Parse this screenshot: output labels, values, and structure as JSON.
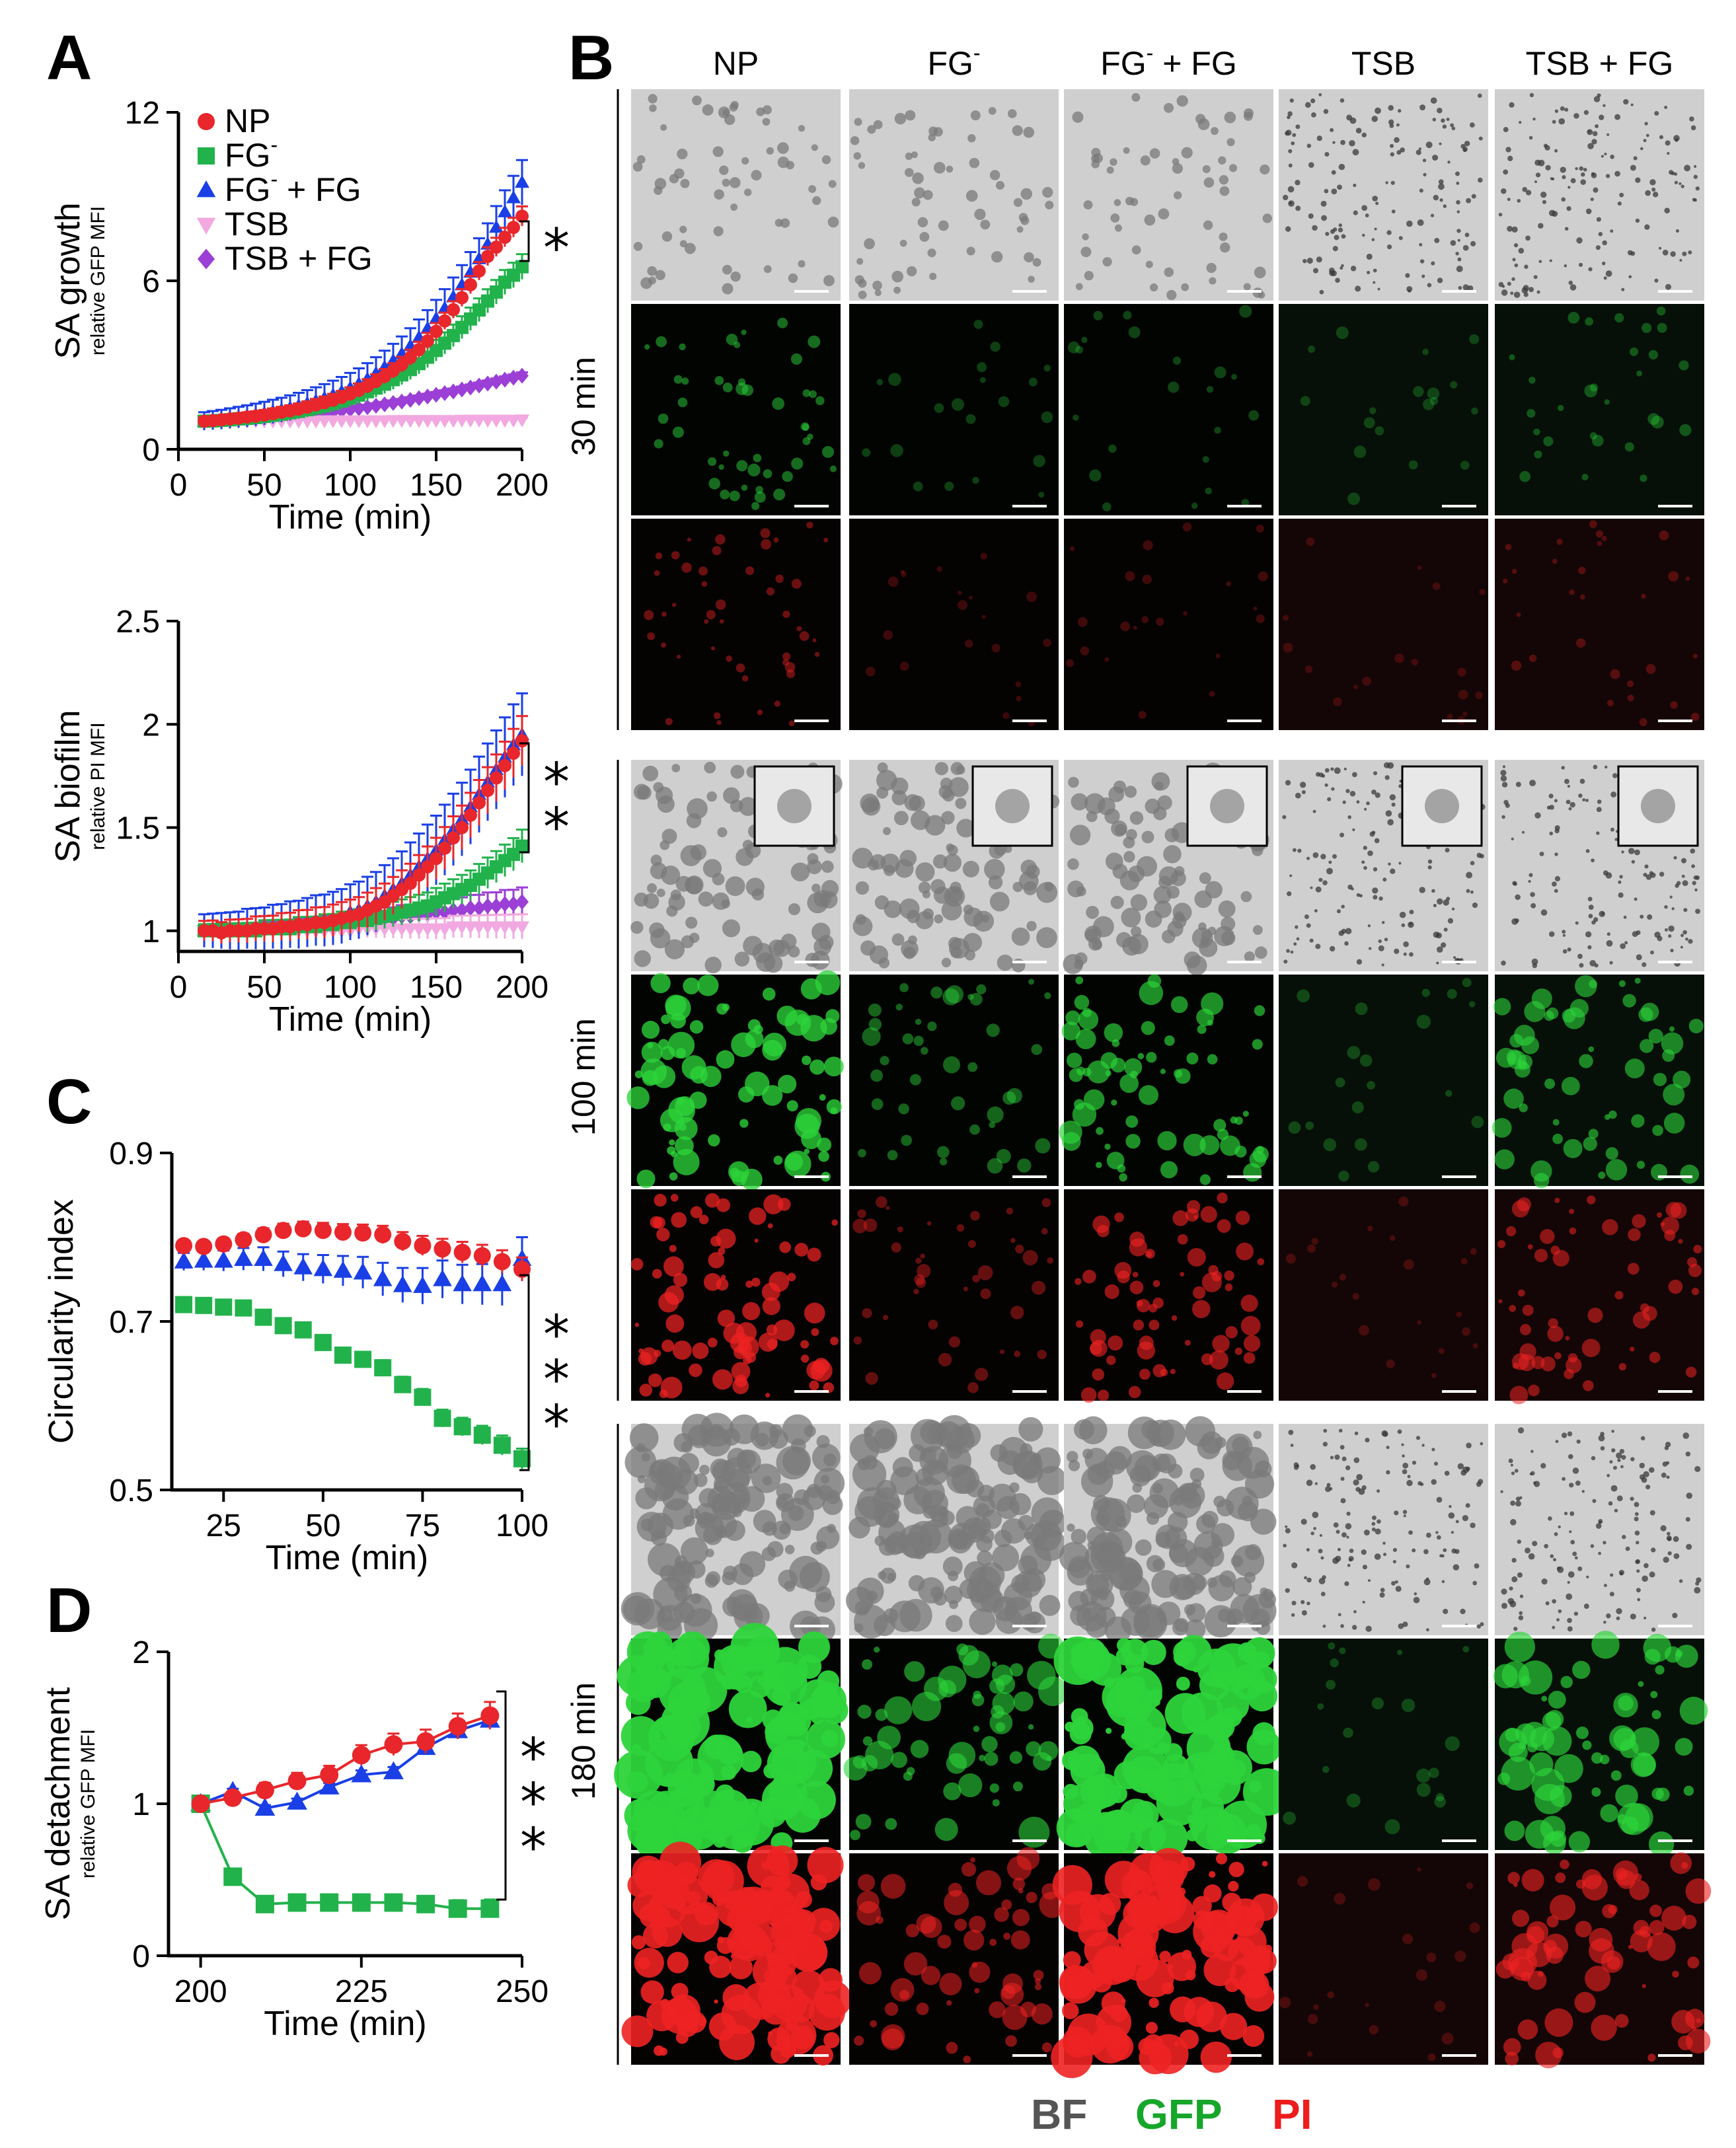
{
  "figure": {
    "panel_labels": {
      "a": "A",
      "b": "B",
      "c": "C",
      "d": "D"
    },
    "colors": {
      "NP": "#e8262b",
      "FG-": "#22b24c",
      "FG- + FG": "#1a3fe6",
      "TSB": "#f2a8e0",
      "TSB + FG": "#9b3fd6"
    },
    "legend": [
      "NP",
      "FG",
      "FG + FG",
      "TSB",
      "TSB + FG"
    ],
    "legend_sup": [
      "",
      "-",
      "-",
      "",
      ""
    ]
  },
  "chart_data": [
    {
      "id": "A-top",
      "type": "line",
      "xlabel": "Time (min)",
      "ylabel": "SA growth",
      "ylabel_sub": "relative GFP MFI",
      "xlim": [
        0,
        200
      ],
      "ylim": [
        0,
        12
      ],
      "xticks": [
        "0",
        "50",
        "100",
        "150",
        "200"
      ],
      "yticks": [
        "0",
        "6",
        "12"
      ],
      "significance": "*",
      "x": [
        15,
        20,
        25,
        30,
        35,
        40,
        45,
        50,
        55,
        60,
        65,
        70,
        75,
        80,
        85,
        90,
        95,
        100,
        105,
        110,
        115,
        120,
        125,
        130,
        135,
        140,
        145,
        150,
        155,
        160,
        165,
        170,
        175,
        180,
        185,
        190,
        195,
        200
      ],
      "series": [
        {
          "name": "NP",
          "marker": "circle",
          "values": [
            1.0,
            1.02,
            1.05,
            1.08,
            1.11,
            1.15,
            1.18,
            1.22,
            1.27,
            1.32,
            1.37,
            1.43,
            1.5,
            1.58,
            1.66,
            1.75,
            1.85,
            1.97,
            2.1,
            2.25,
            2.42,
            2.6,
            2.8,
            3.02,
            3.27,
            3.55,
            3.86,
            4.2,
            4.57,
            4.97,
            5.4,
            5.86,
            6.35,
            6.87,
            7.2,
            7.55,
            7.9,
            8.3
          ]
        },
        {
          "name": "FG-",
          "marker": "square",
          "values": [
            1.0,
            1.01,
            1.03,
            1.05,
            1.08,
            1.1,
            1.13,
            1.17,
            1.21,
            1.25,
            1.3,
            1.35,
            1.41,
            1.48,
            1.55,
            1.63,
            1.72,
            1.82,
            1.93,
            2.05,
            2.18,
            2.32,
            2.48,
            2.65,
            2.84,
            3.05,
            3.28,
            3.52,
            3.78,
            4.05,
            4.34,
            4.64,
            4.96,
            5.28,
            5.6,
            5.95,
            6.2,
            6.5
          ]
        },
        {
          "name": "FG- + FG",
          "marker": "triangle",
          "values": [
            1.0,
            1.03,
            1.06,
            1.1,
            1.14,
            1.18,
            1.23,
            1.28,
            1.34,
            1.4,
            1.47,
            1.55,
            1.63,
            1.72,
            1.82,
            1.93,
            2.05,
            2.18,
            2.33,
            2.5,
            2.7,
            2.92,
            3.15,
            3.4,
            3.68,
            3.98,
            4.3,
            4.65,
            5.02,
            5.42,
            5.85,
            6.3,
            6.78,
            7.3,
            7.9,
            8.45,
            8.95,
            9.5
          ]
        },
        {
          "name": "TSB",
          "marker": "triangle-down",
          "values": [
            1.0,
            1.0,
            1.0,
            1.0,
            1.0,
            1.0,
            1.01,
            1.01,
            1.01,
            1.01,
            1.01,
            1.01,
            1.01,
            1.01,
            1.02,
            1.02,
            1.02,
            1.02,
            1.02,
            1.02,
            1.02,
            1.02,
            1.03,
            1.03,
            1.03,
            1.03,
            1.03,
            1.03,
            1.03,
            1.03,
            1.04,
            1.04,
            1.04,
            1.04,
            1.04,
            1.04,
            1.04,
            1.05
          ]
        },
        {
          "name": "TSB + FG",
          "marker": "diamond",
          "values": [
            1.0,
            1.01,
            1.02,
            1.03,
            1.05,
            1.07,
            1.09,
            1.11,
            1.13,
            1.15,
            1.18,
            1.21,
            1.24,
            1.27,
            1.3,
            1.34,
            1.38,
            1.42,
            1.46,
            1.5,
            1.55,
            1.6,
            1.65,
            1.7,
            1.76,
            1.82,
            1.88,
            1.94,
            2.0,
            2.06,
            2.13,
            2.2,
            2.27,
            2.34,
            2.41,
            2.48,
            2.55,
            2.62
          ]
        }
      ],
      "errors": {
        "NP": 0.35,
        "FG-": 0.45,
        "FG- + FG": 0.8,
        "TSB": 0.08,
        "TSB + FG": 0.12
      }
    },
    {
      "id": "A-bottom",
      "type": "line",
      "xlabel": "Time (min)",
      "ylabel": "SA biofilm",
      "ylabel_sub": "relative PI MFI",
      "xlim": [
        0,
        200
      ],
      "ylim": [
        0.9,
        2.5
      ],
      "xticks": [
        "0",
        "50",
        "100",
        "150",
        "200"
      ],
      "yticks": [
        "1",
        "1.5",
        "2",
        "2.5"
      ],
      "significance": "**",
      "x": [
        15,
        20,
        25,
        30,
        35,
        40,
        45,
        50,
        55,
        60,
        65,
        70,
        75,
        80,
        85,
        90,
        95,
        100,
        105,
        110,
        115,
        120,
        125,
        130,
        135,
        140,
        145,
        150,
        155,
        160,
        165,
        170,
        175,
        180,
        185,
        190,
        195,
        200
      ],
      "series": [
        {
          "name": "NP",
          "marker": "circle",
          "values": [
            1.0,
            1.0,
            0.99,
            1.0,
            1.0,
            1.0,
            1.01,
            1.01,
            1.01,
            1.02,
            1.02,
            1.03,
            1.03,
            1.04,
            1.04,
            1.05,
            1.06,
            1.07,
            1.08,
            1.1,
            1.12,
            1.14,
            1.17,
            1.2,
            1.23,
            1.27,
            1.31,
            1.35,
            1.4,
            1.45,
            1.5,
            1.56,
            1.62,
            1.68,
            1.74,
            1.8,
            1.86,
            1.92
          ]
        },
        {
          "name": "FG-",
          "marker": "square",
          "values": [
            1.0,
            1.0,
            1.0,
            1.0,
            1.0,
            1.0,
            1.0,
            1.01,
            1.01,
            1.01,
            1.01,
            1.02,
            1.02,
            1.02,
            1.03,
            1.03,
            1.04,
            1.04,
            1.05,
            1.05,
            1.06,
            1.07,
            1.08,
            1.09,
            1.1,
            1.11,
            1.12,
            1.14,
            1.16,
            1.18,
            1.2,
            1.22,
            1.25,
            1.28,
            1.31,
            1.34,
            1.37,
            1.41
          ]
        },
        {
          "name": "FG- + FG",
          "marker": "triangle",
          "values": [
            1.0,
            1.0,
            1.0,
            1.0,
            1.0,
            1.01,
            1.01,
            1.01,
            1.02,
            1.02,
            1.03,
            1.03,
            1.04,
            1.05,
            1.05,
            1.06,
            1.07,
            1.09,
            1.1,
            1.12,
            1.14,
            1.17,
            1.2,
            1.23,
            1.27,
            1.31,
            1.35,
            1.39,
            1.44,
            1.49,
            1.54,
            1.6,
            1.66,
            1.72,
            1.78,
            1.84,
            1.9,
            1.95
          ]
        },
        {
          "name": "TSB",
          "marker": "triangle-down",
          "values": [
            1.0,
            1.0,
            1.0,
            1.0,
            1.0,
            1.0,
            1.0,
            1.0,
            1.0,
            1.0,
            1.0,
            1.0,
            1.0,
            1.0,
            1.0,
            1.0,
            1.0,
            1.0,
            1.01,
            1.01,
            1.01,
            1.01,
            1.01,
            1.01,
            1.01,
            1.01,
            1.01,
            1.01,
            1.01,
            1.02,
            1.02,
            1.02,
            1.02,
            1.02,
            1.02,
            1.02,
            1.02,
            1.02
          ]
        },
        {
          "name": "TSB + FG",
          "marker": "diamond",
          "values": [
            1.0,
            1.0,
            1.0,
            1.0,
            1.0,
            1.0,
            1.0,
            1.01,
            1.01,
            1.01,
            1.01,
            1.02,
            1.02,
            1.02,
            1.03,
            1.03,
            1.03,
            1.04,
            1.04,
            1.05,
            1.05,
            1.06,
            1.06,
            1.07,
            1.07,
            1.08,
            1.08,
            1.09,
            1.09,
            1.1,
            1.1,
            1.11,
            1.11,
            1.12,
            1.12,
            1.13,
            1.13,
            1.14
          ]
        }
      ],
      "errors": {
        "NP": 0.12,
        "FG-": 0.08,
        "FG- + FG": 0.2,
        "TSB": 0.06,
        "TSB + FG": 0.07
      }
    },
    {
      "id": "C",
      "type": "line",
      "xlabel": "Time (min)",
      "ylabel": "Circularity index",
      "ylabel_sub": "",
      "xlim": [
        12,
        100
      ],
      "ylim": [
        0.5,
        0.9
      ],
      "xticks": [
        "25",
        "50",
        "75",
        "100"
      ],
      "xtick_values": [
        25,
        50,
        75,
        100
      ],
      "yticks": [
        "0.5",
        "0.7",
        "0.9"
      ],
      "significance": "***",
      "x": [
        15,
        20,
        25,
        30,
        35,
        40,
        45,
        50,
        55,
        60,
        65,
        70,
        75,
        80,
        85,
        90,
        95,
        100
      ],
      "series": [
        {
          "name": "NP",
          "marker": "circle",
          "values": [
            0.79,
            0.789,
            0.792,
            0.797,
            0.803,
            0.808,
            0.81,
            0.808,
            0.806,
            0.805,
            0.803,
            0.795,
            0.79,
            0.786,
            0.782,
            0.778,
            0.771,
            0.762
          ]
        },
        {
          "name": "FG-",
          "marker": "square",
          "values": [
            0.72,
            0.719,
            0.717,
            0.716,
            0.705,
            0.695,
            0.69,
            0.675,
            0.66,
            0.655,
            0.645,
            0.625,
            0.61,
            0.585,
            0.575,
            0.565,
            0.553,
            0.537
          ]
        },
        {
          "name": "FG- + FG",
          "marker": "triangle",
          "values": [
            0.771,
            0.772,
            0.772,
            0.774,
            0.774,
            0.768,
            0.764,
            0.762,
            0.76,
            0.758,
            0.75,
            0.743,
            0.742,
            0.75,
            0.744,
            0.744,
            0.744,
            0.774
          ]
        }
      ],
      "errors": {
        "NP": 0.014,
        "FG-": 0.012,
        "FG- + FG": 0.026
      }
    },
    {
      "id": "D",
      "type": "line",
      "xlabel": "Time (min)",
      "ylabel": "SA detachment",
      "ylabel_sub": "relative GFP MFI",
      "xlim": [
        195,
        250
      ],
      "ylim": [
        0,
        2
      ],
      "xticks": [
        "200",
        "225",
        "250"
      ],
      "xtick_values": [
        200,
        225,
        250
      ],
      "yticks": [
        "0",
        "1",
        "2"
      ],
      "significance": "***",
      "x": [
        200,
        205,
        210,
        215,
        220,
        225,
        230,
        235,
        240,
        245
      ],
      "series": [
        {
          "name": "NP",
          "marker": "circle",
          "values": [
            1.0,
            1.04,
            1.09,
            1.15,
            1.19,
            1.32,
            1.39,
            1.41,
            1.51,
            1.58
          ]
        },
        {
          "name": "FG-",
          "marker": "square",
          "values": [
            1.0,
            0.52,
            0.34,
            0.35,
            0.35,
            0.35,
            0.35,
            0.34,
            0.31,
            0.31
          ]
        },
        {
          "name": "FG- + FG",
          "marker": "triangle",
          "values": [
            1.0,
            1.08,
            0.97,
            1.01,
            1.11,
            1.19,
            1.21,
            1.37,
            1.48,
            1.55
          ]
        }
      ],
      "errors": {
        "NP": 0.09,
        "FG-": 0.06,
        "FG- + FG": 0.04
      }
    }
  ],
  "micrographs": {
    "columns": [
      "NP",
      "FG",
      "FG + FG",
      "TSB",
      "TSB + FG"
    ],
    "columns_sup": [
      "",
      "-",
      "-",
      "",
      ""
    ],
    "timepoints": [
      "30 min",
      "100 min",
      "180 min"
    ],
    "channels": [
      "BF",
      "GFP",
      "PI"
    ],
    "channel_colors": {
      "BF": "#555555",
      "GFP": "#16a62a",
      "PI": "#ee1c1c"
    }
  }
}
